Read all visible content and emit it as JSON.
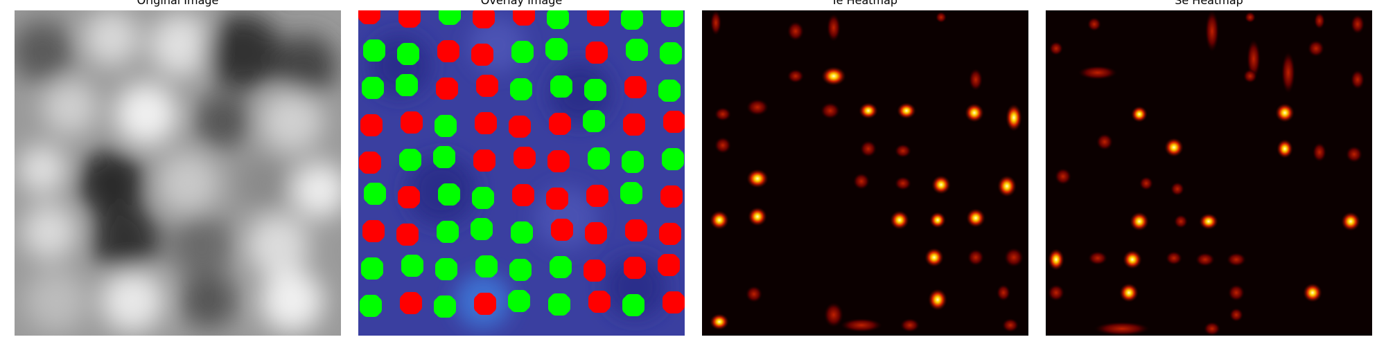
{
  "figure": {
    "panels": [
      {
        "title": "Original Image",
        "kind": "grayscale"
      },
      {
        "title": "Overlay Image",
        "kind": "overlay"
      },
      {
        "title": "Ie Heatmap",
        "kind": "heatmap"
      },
      {
        "title": "Se Heatmap",
        "kind": "heatmap"
      }
    ]
  },
  "colors": {
    "overlay_background": "#3a3fa0",
    "marker_green": "#00ff00",
    "marker_red": "#ff0000",
    "heatmap_background": "#0b0000",
    "heatmap_hot": "#ffff80"
  }
}
